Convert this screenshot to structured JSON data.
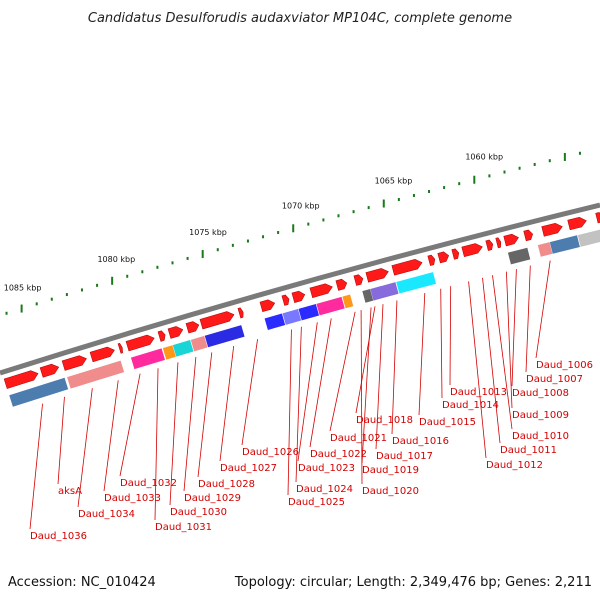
{
  "title": "Candidatus Desulforudis audaxviator MP104C, complete genome",
  "footer": {
    "accession": "Accession: NC_010424",
    "topology": "Topology: circular; Length: 2,349,476 bp; Genes: 2,211"
  },
  "scale_labels": [
    "1060 kbp",
    "1065 kbp",
    "1070 kbp",
    "1075 kbp",
    "1080 kbp",
    "1085 kbp"
  ],
  "gene_labels": [
    "Daud_1006",
    "Daud_1007",
    "Daud_1008",
    "Daud_1009",
    "Daud_1010",
    "Daud_1011",
    "Daud_1012",
    "Daud_1013",
    "Daud_1014",
    "Daud_1015",
    "Daud_1016",
    "Daud_1017",
    "Daud_1018",
    "Daud_1019",
    "Daud_1020",
    "Daud_1021",
    "Daud_1022",
    "Daud_1023",
    "Daud_1024",
    "Daud_1025",
    "Daud_1026",
    "Daud_1027",
    "Daud_1028",
    "Daud_1029",
    "Daud_1030",
    "Daud_1031",
    "Daud_1032",
    "Daud_1033",
    "Daud_1034",
    "aksA",
    "Daud_1036"
  ],
  "colors": {
    "gene_arrow": "#ff1a1a",
    "label": "#d40000",
    "backbone": "#8a8a8a",
    "scale_tick": "#1a7a1a"
  }
}
